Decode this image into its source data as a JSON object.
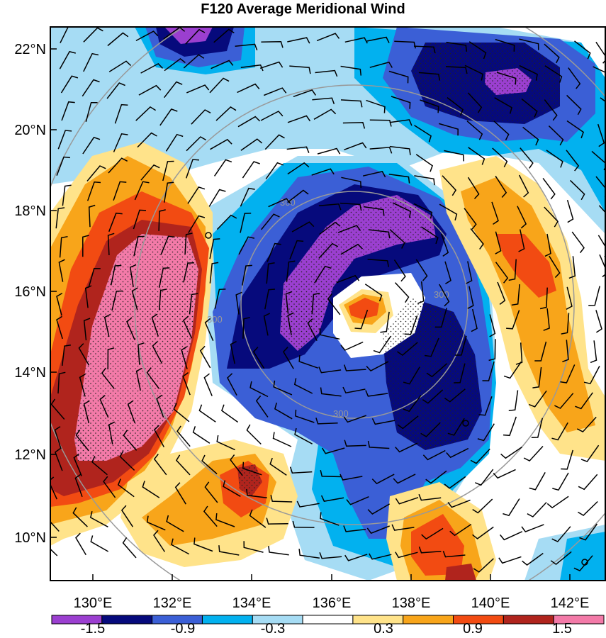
{
  "title": "F120 Average Meridional Wind",
  "map": {
    "lon_range": [
      129,
      143
    ],
    "lat_range": [
      9,
      22.5
    ],
    "lon_ticks": [
      "130°E",
      "132°E",
      "134°E",
      "136°E",
      "138°E",
      "140°E",
      "142°E"
    ],
    "lat_ticks": [
      "22°N",
      "20°N",
      "18°N",
      "16°N",
      "14°N",
      "12°N",
      "10°N"
    ],
    "range_ring_label": "300",
    "colors": {
      "c1": "#9b3fd0",
      "c2": "#060a7c",
      "c3": "#3b5fd6",
      "c4": "#02b1ef",
      "c5": "#a6dcf4",
      "c6": "#ffffff",
      "c7": "#ffe38a",
      "c8": "#f8a51a",
      "c9": "#f24b12",
      "c10": "#b0241d",
      "c11": "#f37aa8"
    }
  },
  "colorbar": {
    "labels": [
      "-1.5",
      "-0.9",
      "-0.3",
      "0.3",
      "0.9",
      "1.5"
    ],
    "colors": [
      "#9b3fd0",
      "#060a7c",
      "#3b5fd6",
      "#02b1ef",
      "#a6dcf4",
      "#ffffff",
      "#ffe38a",
      "#f8a51a",
      "#f24b12",
      "#b0241d",
      "#f37aa8"
    ]
  }
}
